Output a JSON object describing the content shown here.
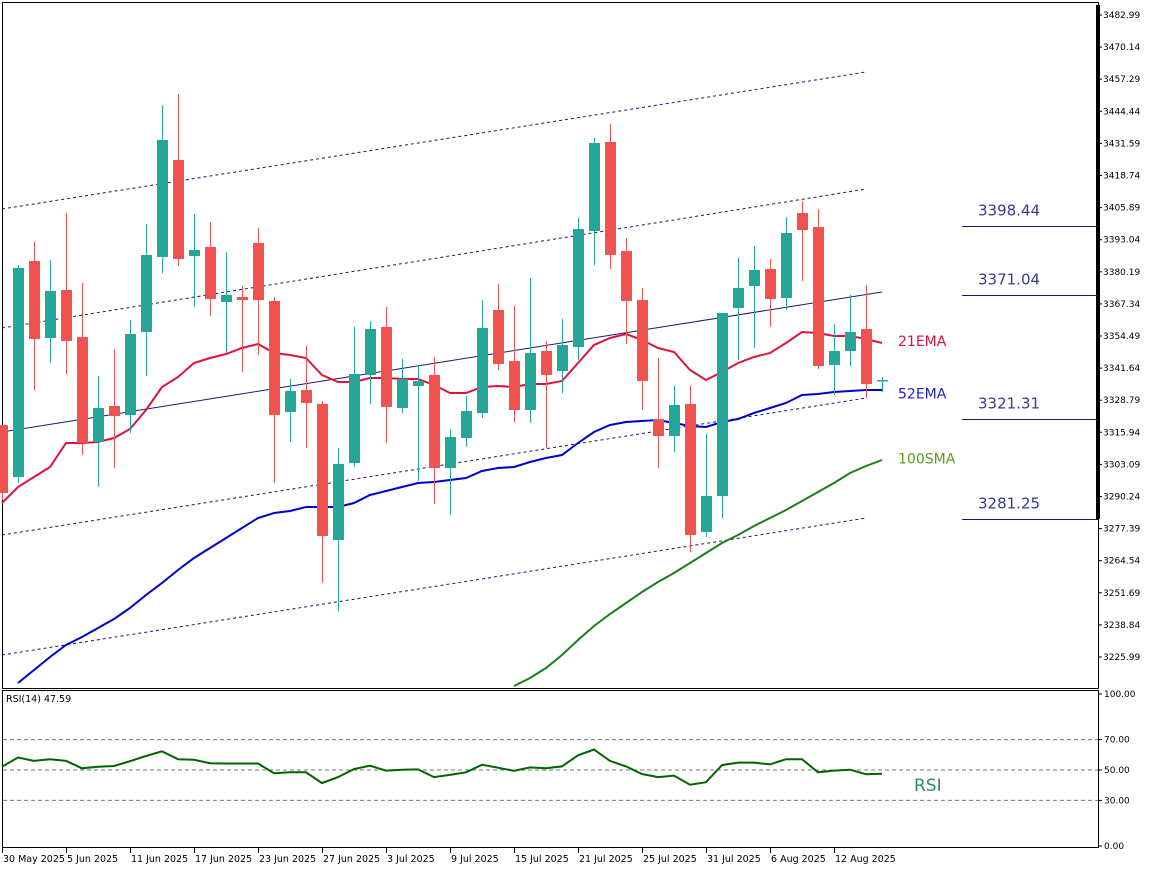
{
  "chart_data": {
    "type": "candlestick",
    "symbol_panel": "main",
    "y_axis_ticks": [
      "3482.99",
      "3470.14",
      "3457.29",
      "3444.44",
      "3431.59",
      "3418.74",
      "3405.89",
      "3393.04",
      "3380.19",
      "3367.34",
      "3354.49",
      "3341.64",
      "3328.79",
      "3315.94",
      "3303.09",
      "3290.24",
      "3277.39",
      "3264.54",
      "3251.69",
      "3238.84",
      "3225.99"
    ],
    "x_axis_labels": [
      {
        "bar": 0,
        "label": "30 May 2025"
      },
      {
        "bar": 4,
        "label": "5 Jun 2025"
      },
      {
        "bar": 8,
        "label": "11 Jun 2025"
      },
      {
        "bar": 12,
        "label": "17 Jun 2025"
      },
      {
        "bar": 16,
        "label": "23 Jun 2025"
      },
      {
        "bar": 20,
        "label": "27 Jun 2025"
      },
      {
        "bar": 24,
        "label": "3 Jul 2025"
      },
      {
        "bar": 28,
        "label": "9 Jul 2025"
      },
      {
        "bar": 32,
        "label": "15 Jul 2025"
      },
      {
        "bar": 36,
        "label": "21 Jul 2025"
      },
      {
        "bar": 40,
        "label": "25 Jul 2025"
      },
      {
        "bar": 44,
        "label": "31 Jul 2025"
      },
      {
        "bar": 48,
        "label": "6 Aug 2025"
      },
      {
        "bar": 52,
        "label": "12 Aug 2025"
      }
    ],
    "ohlc": [
      [
        3318.87,
        3318.87,
        3288.85,
        3291.65
      ],
      [
        3298.06,
        3382.92,
        3295.65,
        3381.72
      ],
      [
        3384.52,
        3392.13,
        3332.88,
        3353.3
      ],
      [
        3353.7,
        3384.92,
        3343.69,
        3372.51
      ],
      [
        3372.91,
        3403.74,
        3339.29,
        3352.5
      ],
      [
        3354.1,
        3375.72,
        3306.86,
        3311.67
      ],
      [
        3312.07,
        3338.49,
        3294.05,
        3325.68
      ],
      [
        3326.48,
        3349.3,
        3301.66,
        3322.47
      ],
      [
        3322.87,
        3360.9,
        3315.67,
        3355.3
      ],
      [
        3356.1,
        3399.33,
        3338.49,
        3386.92
      ],
      [
        3386.12,
        3446.97,
        3379.72,
        3432.96
      ],
      [
        3424.95,
        3451.37,
        3382.52,
        3385.32
      ],
      [
        3386.52,
        3403.34,
        3366.11,
        3388.93
      ],
      [
        3390.13,
        3400.13,
        3362.51,
        3369.31
      ],
      [
        3368.11,
        3388.12,
        3347.69,
        3370.91
      ],
      [
        3370.11,
        3374.51,
        3340.09,
        3368.91
      ],
      [
        3391.73,
        3397.73,
        3346.89,
        3368.91
      ],
      [
        3368.51,
        3370.11,
        3295.65,
        3322.87
      ],
      [
        3324.07,
        3337.29,
        3312.07,
        3332.48
      ],
      [
        3332.88,
        3350.5,
        3309.66,
        3327.68
      ],
      [
        3327.28,
        3328.48,
        3255.63,
        3274.44
      ],
      [
        3272.84,
        3309.66,
        3244.22,
        3303.26
      ],
      [
        3303.66,
        3358.1,
        3302.06,
        3339.29
      ],
      [
        3338.89,
        3360.5,
        3327.28,
        3357.3
      ],
      [
        3358.1,
        3366.11,
        3311.67,
        3326.08
      ],
      [
        3325.68,
        3345.29,
        3323.67,
        3337.29
      ],
      [
        3334.48,
        3342.89,
        3296.46,
        3336.49
      ],
      [
        3338.89,
        3346.09,
        3287.25,
        3301.66
      ],
      [
        3301.66,
        3317.27,
        3282.84,
        3314.07
      ],
      [
        3313.67,
        3330.48,
        3310.06,
        3324.47
      ],
      [
        3323.67,
        3368.91,
        3321.67,
        3357.7
      ],
      [
        3364.91,
        3375.31,
        3340.89,
        3343.29
      ],
      [
        3344.49,
        3366.51,
        3320.07,
        3324.88
      ],
      [
        3324.88,
        3377.72,
        3319.67,
        3347.69
      ],
      [
        3348.49,
        3352.5,
        3309.66,
        3338.89
      ],
      [
        3340.49,
        3361.3,
        3331.68,
        3350.9
      ],
      [
        3350.1,
        3401.73,
        3344.89,
        3397.33
      ],
      [
        3396.53,
        3433.76,
        3382.92,
        3431.76
      ],
      [
        3432.16,
        3439.36,
        3381.32,
        3386.92
      ],
      [
        3388.52,
        3393.73,
        3351.3,
        3368.51
      ],
      [
        3368.91,
        3373.71,
        3324.88,
        3336.49
      ],
      [
        3321.27,
        3345.69,
        3301.66,
        3314.47
      ],
      [
        3314.47,
        3334.48,
        3308.06,
        3326.88
      ],
      [
        3327.28,
        3334.48,
        3268.03,
        3274.84
      ],
      [
        3276.04,
        3315.27,
        3274.04,
        3290.45
      ],
      [
        3290.45,
        3363.71,
        3281.64,
        3363.71
      ],
      [
        3365.71,
        3385.72,
        3344.89,
        3373.71
      ],
      [
        3374.51,
        3390.53,
        3349.7,
        3380.92
      ],
      [
        3381.32,
        3385.32,
        3358.1,
        3369.31
      ],
      [
        3369.71,
        3402.13,
        3364.91,
        3395.73
      ],
      [
        3403.74,
        3408.54,
        3376.52,
        3396.93
      ],
      [
        3398.13,
        3405.34,
        3341.29,
        3342.49
      ],
      [
        3342.89,
        3359.3,
        3330.88,
        3348.49
      ],
      [
        3348.49,
        3370.91,
        3342.49,
        3356.1
      ],
      [
        3357.3,
        3374.91,
        3329.68,
        3335.28
      ],
      [
        3336.49,
        3338.09,
        3332.08,
        3336.89
      ]
    ],
    "series": [
      {
        "name": "21EMA",
        "color": "#dc143c",
        "start_bar": 0,
        "values": [
          3287.65,
          3294.05,
          3298.06,
          3302.06,
          3311.67,
          3311.67,
          3312.07,
          3313.67,
          3317.27,
          3324.88,
          3334.08,
          3338.09,
          3343.69,
          3345.69,
          3347.29,
          3349.7,
          3351.3,
          3347.69,
          3346.89,
          3345.69,
          3338.89,
          3336.09,
          3336.09,
          3337.69,
          3337.69,
          3337.29,
          3337.29,
          3334.88,
          3331.68,
          3331.68,
          3334.08,
          3334.48,
          3334.08,
          3335.28,
          3335.28,
          3336.49,
          3343.69,
          3350.9,
          3353.7,
          3355.3,
          3352.9,
          3349.7,
          3348.09,
          3340.89,
          3336.89,
          3340.09,
          3343.69,
          3346.09,
          3347.69,
          3351.7,
          3356.1,
          3355.7,
          3354.5,
          3354.5,
          3353.3,
          3351.7
        ]
      },
      {
        "name": "52EMA",
        "color": "#0000cd",
        "start_bar": 1,
        "values": [
          3215.6,
          3220.8,
          3226.0,
          3230.81,
          3234.01,
          3237.61,
          3241.21,
          3245.62,
          3250.82,
          3255.63,
          3260.83,
          3265.63,
          3269.64,
          3273.64,
          3277.64,
          3281.64,
          3283.64,
          3284.44,
          3286.05,
          3286.05,
          3286.05,
          3287.65,
          3290.85,
          3292.45,
          3294.05,
          3295.65,
          3296.05,
          3296.86,
          3297.66,
          3300.46,
          3301.66,
          3302.06,
          3304.06,
          3305.66,
          3306.86,
          3311.67,
          3316.07,
          3318.87,
          3320.07,
          3320.47,
          3320.87,
          3319.67,
          3318.47,
          3318.07,
          3320.07,
          3321.27,
          3323.67,
          3325.68,
          3327.68,
          3330.88,
          3331.28,
          3332.08,
          3332.48,
          3332.88,
          3332.88
        ]
      },
      {
        "name": "100SMA",
        "color": "#1a7f1a",
        "start_bar": 32,
        "values": [
          3214.39,
          3217.6,
          3221.6,
          3226.8,
          3232.81,
          3238.41,
          3243.22,
          3247.62,
          3252.02,
          3256.03,
          3259.63,
          3263.63,
          3267.63,
          3271.63,
          3274.84,
          3278.44,
          3281.64,
          3284.85,
          3288.45,
          3292.05,
          3295.65,
          3299.66,
          3302.46,
          3304.86
        ]
      }
    ],
    "series_labels": [
      {
        "text": "21EMA",
        "color": "#dc143c",
        "price": 3352.5
      },
      {
        "text": "52EMA",
        "color": "#1f1fd0",
        "price": 3331.5
      },
      {
        "text": "100SMA",
        "color": "#5a9a1a",
        "price": 3305.5
      }
    ],
    "trendlines": [
      {
        "style": "dotted",
        "from": [
          0,
          3405.34
        ],
        "to": [
          54,
          3460.18
        ]
      },
      {
        "style": "dotted",
        "from": [
          0,
          3357.7
        ],
        "to": [
          54,
          3413.34
        ]
      },
      {
        "style": "solid",
        "from": [
          0,
          3316.07
        ],
        "to": [
          55,
          3372.11
        ]
      },
      {
        "style": "dotted",
        "from": [
          0,
          3274.84
        ],
        "to": [
          54,
          3329.68
        ]
      },
      {
        "style": "dotted",
        "from": [
          0,
          3226.8
        ],
        "to": [
          54,
          3281.64
        ]
      }
    ],
    "levels": [
      {
        "label": "3398.44",
        "price": 3398.44
      },
      {
        "label": "3371.04",
        "price": 3371.04
      },
      {
        "label": "3321.31",
        "price": 3321.31
      },
      {
        "label": "3281.25",
        "price": 3281.25
      }
    ],
    "rsi": {
      "title": "RSI(14) 47.59",
      "label": "RSI",
      "color": "#006400",
      "label_color": "#2e8b57",
      "ylim": [
        0,
        100
      ],
      "ticks": [
        "100.00",
        "70.00",
        "50.00",
        "30.00",
        "0.00"
      ],
      "levels": [
        70,
        50,
        30
      ],
      "values": [
        52.2,
        58.2,
        56.0,
        57.1,
        56.0,
        51.1,
        52.2,
        52.6,
        55.8,
        59.2,
        62.3,
        57.1,
        56.7,
        54.5,
        54.3,
        54.3,
        54.3,
        47.9,
        48.5,
        48.5,
        41.4,
        45.3,
        50.6,
        52.8,
        49.6,
        50.2,
        50.4,
        45.3,
        46.8,
        48.5,
        53.4,
        51.5,
        49.4,
        51.7,
        51.1,
        52.4,
        59.7,
        63.5,
        56.0,
        52.4,
        47.4,
        45.3,
        46.3,
        40.3,
        42.0,
        53.2,
        54.9,
        54.9,
        53.7,
        57.1,
        57.1,
        48.5,
        49.6,
        50.2,
        47.2,
        47.59
      ]
    },
    "colors": {
      "up": "#26a69a",
      "down": "#ef5350",
      "trend": "#191970",
      "level": "#191970",
      "level_text": "#3a3a8c"
    }
  }
}
